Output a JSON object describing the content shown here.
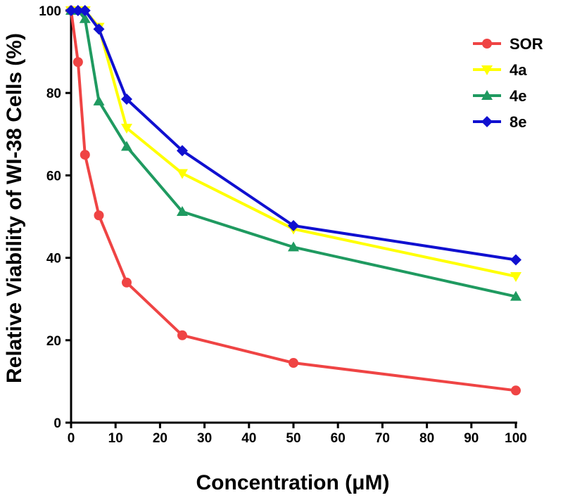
{
  "chart_data": {
    "type": "line",
    "title": "",
    "xlabel": "Concentration  (μM)",
    "ylabel": "Relative Viability of WI-38 Cells (%)",
    "xlim": [
      0,
      100
    ],
    "ylim": [
      0,
      100
    ],
    "xticks": [
      0,
      10,
      20,
      30,
      40,
      50,
      60,
      70,
      80,
      90,
      100
    ],
    "yticks": [
      0,
      20,
      40,
      60,
      80,
      100
    ],
    "legend_position": "top-right",
    "series": [
      {
        "name": "SOR",
        "color": "#ef4444",
        "marker": "circle",
        "x": [
          0,
          1.56,
          3.13,
          6.25,
          12.5,
          25,
          50,
          100
        ],
        "y": [
          100,
          87.5,
          65,
          50.3,
          34,
          21.2,
          14.5,
          7.8
        ]
      },
      {
        "name": "4a",
        "color": "#ffff00",
        "marker": "triangle-down",
        "x": [
          0,
          1.56,
          3.13,
          6.25,
          12.5,
          25,
          50,
          100
        ],
        "y": [
          100,
          100,
          100,
          96,
          71.5,
          60.5,
          47,
          35.5
        ]
      },
      {
        "name": "4e",
        "color": "#1f9a60",
        "marker": "triangle-up",
        "x": [
          0,
          1.56,
          3.13,
          6.25,
          12.5,
          25,
          50,
          100
        ],
        "y": [
          100,
          100,
          98,
          78,
          67,
          51.2,
          42.6,
          30.6
        ]
      },
      {
        "name": "8e",
        "color": "#1010d0",
        "marker": "diamond",
        "x": [
          0,
          1.56,
          3.13,
          6.25,
          12.5,
          25,
          50,
          100
        ],
        "y": [
          100,
          100,
          100,
          95.5,
          78.5,
          66,
          47.8,
          39.5
        ]
      }
    ]
  }
}
